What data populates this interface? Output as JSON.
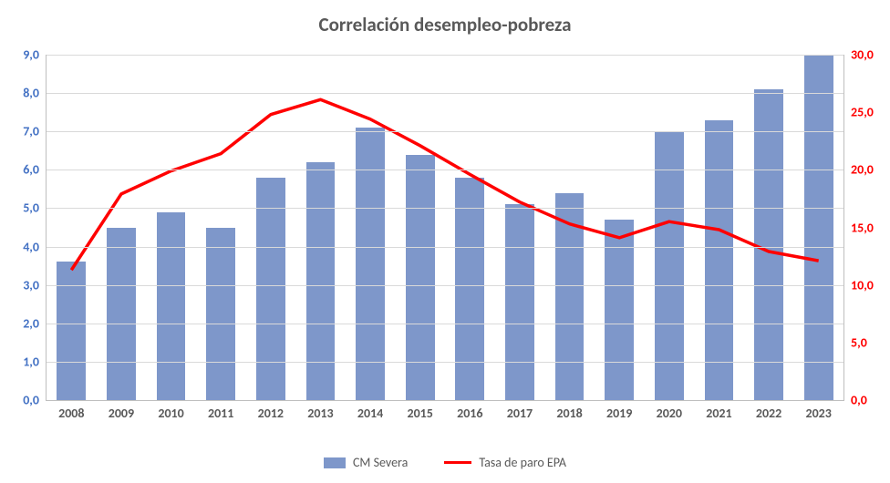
{
  "chart": {
    "type": "bar+line",
    "title": "Correlación desempleo-pobreza",
    "title_fontsize": 21,
    "title_color": "#595959",
    "background_color": "#ffffff",
    "grid_color": "#d9d9d9",
    "axis_color": "#bfbfbf",
    "categories": [
      "2008",
      "2009",
      "2010",
      "2011",
      "2012",
      "2013",
      "2014",
      "2015",
      "2016",
      "2017",
      "2018",
      "2019",
      "2020",
      "2021",
      "2022",
      "2023"
    ],
    "bar_series": {
      "name": "CM Severa",
      "color": "#7e97ca",
      "values": [
        3.6,
        4.5,
        4.9,
        4.5,
        5.8,
        6.2,
        7.1,
        6.4,
        5.8,
        5.1,
        5.4,
        4.7,
        7.0,
        7.3,
        8.1,
        9.0
      ],
      "bar_width": 0.58
    },
    "line_series": {
      "name": "Tasa de paro EPA",
      "color": "#ff0000",
      "width": 3.5,
      "values": [
        11.3,
        17.9,
        19.9,
        21.4,
        24.8,
        26.1,
        24.4,
        22.1,
        19.6,
        17.2,
        15.3,
        14.1,
        15.5,
        14.8,
        12.9,
        12.1
      ]
    },
    "y_left": {
      "min": 0.0,
      "max": 9.0,
      "step": 1.0,
      "ticks": [
        "0,0",
        "1,0",
        "2,0",
        "3,0",
        "4,0",
        "5,0",
        "6,0",
        "7,0",
        "8,0",
        "9,0"
      ],
      "color": "#4472c4",
      "fontsize": 14
    },
    "y_right": {
      "min": 0.0,
      "max": 30.0,
      "step": 5.0,
      "ticks": [
        "0,0",
        "5,0",
        "10,0",
        "15,0",
        "20,0",
        "25,0",
        "30,0"
      ],
      "color": "#ff0000",
      "fontsize": 14
    },
    "x_axis": {
      "fontsize": 14,
      "color": "#595959"
    },
    "legend": {
      "position": "bottom",
      "fontsize": 14,
      "items": [
        {
          "label": "CM Severa",
          "type": "bar",
          "color": "#7e97ca"
        },
        {
          "label": "Tasa de paro EPA",
          "type": "line",
          "color": "#ff0000"
        }
      ]
    }
  }
}
